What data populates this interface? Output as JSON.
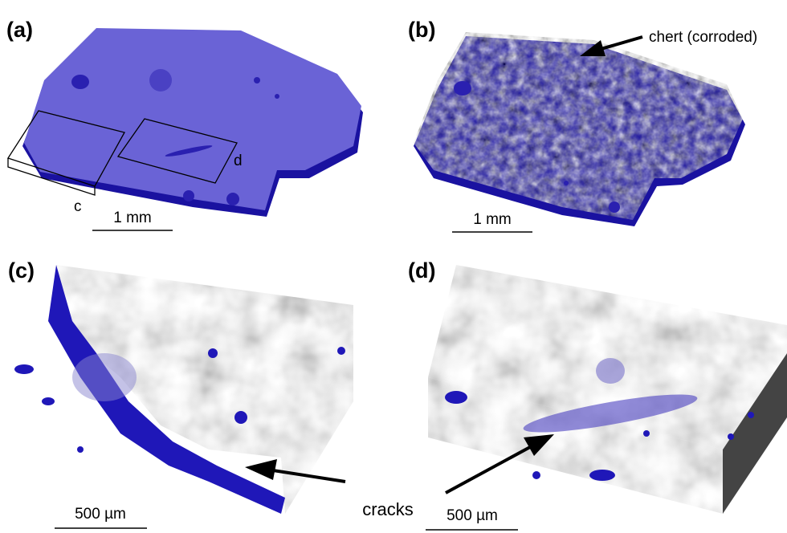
{
  "panels": [
    {
      "label": "(a)",
      "scale_bar": "1 mm",
      "box_labels": [
        "c",
        "d"
      ]
    },
    {
      "label": "(b)",
      "scale_bar": "1 mm",
      "annotation": "chert (corroded)"
    },
    {
      "label": "(c)",
      "scale_bar": "500 µm"
    },
    {
      "label": "(d)",
      "scale_bar": "500 µm"
    }
  ],
  "shared_annotation": "cracks"
}
